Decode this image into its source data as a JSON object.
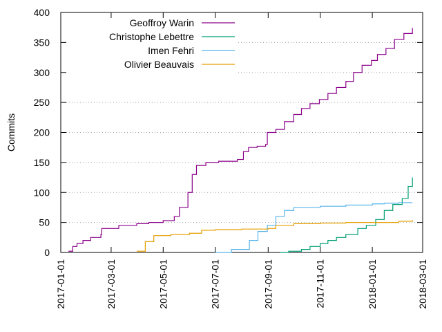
{
  "chart_data": {
    "type": "line",
    "title": "",
    "xlabel": "",
    "ylabel": "Commits",
    "x_axis_type": "date",
    "xlim": [
      "2017-01-01",
      "2018-03-01"
    ],
    "ylim": [
      0,
      400
    ],
    "grid": {
      "y_major": true,
      "x_major": false,
      "style": "dotted"
    },
    "x_ticks": [
      "2017-01-01",
      "2017-03-01",
      "2017-05-01",
      "2017-07-01",
      "2017-09-01",
      "2017-11-01",
      "2018-01-01",
      "2018-03-01"
    ],
    "y_ticks": [
      0,
      50,
      100,
      150,
      200,
      250,
      300,
      350,
      400
    ],
    "legend": {
      "position": "top-left",
      "entries": [
        {
          "name": "Geoffroy Warin",
          "color": "#8b008b"
        },
        {
          "name": "Christophe Lebettre",
          "color": "#009e73"
        },
        {
          "name": "Imen Fehri",
          "color": "#56b4e9"
        },
        {
          "name": "Olivier Beauvais",
          "color": "#e69f00"
        }
      ]
    },
    "series": [
      {
        "name": "Geoffroy Warin",
        "color": "#8b008b",
        "x": [
          "2017-01-10",
          "2017-01-15",
          "2017-01-20",
          "2017-01-27",
          "2017-02-05",
          "2017-02-17",
          "2017-02-18",
          "2017-03-10",
          "2017-03-31",
          "2017-04-14",
          "2017-05-01",
          "2017-05-14",
          "2017-05-20",
          "2017-05-30",
          "2017-06-04",
          "2017-06-09",
          "2017-06-20",
          "2017-07-05",
          "2017-07-27",
          "2017-08-03",
          "2017-08-09",
          "2017-08-19",
          "2017-08-29",
          "2017-08-31",
          "2017-09-10",
          "2017-09-20",
          "2017-10-01",
          "2017-10-10",
          "2017-10-20",
          "2017-10-31",
          "2017-11-10",
          "2017-11-20",
          "2017-12-01",
          "2017-12-10",
          "2017-12-20",
          "2017-12-31",
          "2018-01-07",
          "2018-01-17",
          "2018-01-27",
          "2018-02-07",
          "2018-02-17"
        ],
        "values": [
          2,
          10,
          15,
          20,
          25,
          30,
          40,
          45,
          48,
          50,
          53,
          60,
          75,
          100,
          130,
          145,
          150,
          152,
          155,
          168,
          175,
          177,
          180,
          200,
          205,
          218,
          230,
          240,
          248,
          255,
          265,
          275,
          285,
          300,
          312,
          320,
          330,
          340,
          355,
          365,
          374
        ]
      },
      {
        "name": "Christophe Lebettre",
        "color": "#009e73",
        "x": [
          "2017-09-15",
          "2017-09-25",
          "2017-10-10",
          "2017-10-20",
          "2017-11-01",
          "2017-11-10",
          "2017-11-20",
          "2017-12-01",
          "2017-12-15",
          "2017-12-25",
          "2018-01-05",
          "2018-01-15",
          "2018-01-25",
          "2018-02-05",
          "2018-02-12",
          "2018-02-17"
        ],
        "values": [
          0,
          2,
          5,
          10,
          15,
          20,
          25,
          30,
          40,
          45,
          55,
          70,
          80,
          90,
          110,
          125
        ]
      },
      {
        "name": "Imen Fehri",
        "color": "#56b4e9",
        "x": [
          "2017-07-01",
          "2017-07-20",
          "2017-08-10",
          "2017-08-20",
          "2017-08-31",
          "2017-09-10",
          "2017-09-20",
          "2017-10-01",
          "2017-11-01",
          "2017-12-01",
          "2018-01-01",
          "2018-01-15",
          "2018-02-01",
          "2018-02-17"
        ],
        "values": [
          0,
          5,
          20,
          35,
          45,
          60,
          70,
          75,
          77,
          79,
          81,
          82,
          83,
          83
        ]
      },
      {
        "name": "Olivier Beauvais",
        "color": "#e69f00",
        "x": [
          "2017-03-31",
          "2017-04-10",
          "2017-04-20",
          "2017-05-10",
          "2017-06-01",
          "2017-06-15",
          "2017-07-01",
          "2017-08-01",
          "2017-09-01",
          "2017-09-10",
          "2017-10-01",
          "2017-11-01",
          "2017-12-01",
          "2018-01-01",
          "2018-02-01",
          "2018-02-17"
        ],
        "values": [
          2,
          18,
          28,
          30,
          32,
          37,
          38,
          39,
          40,
          45,
          48,
          49,
          50,
          50,
          52,
          54
        ]
      }
    ]
  }
}
